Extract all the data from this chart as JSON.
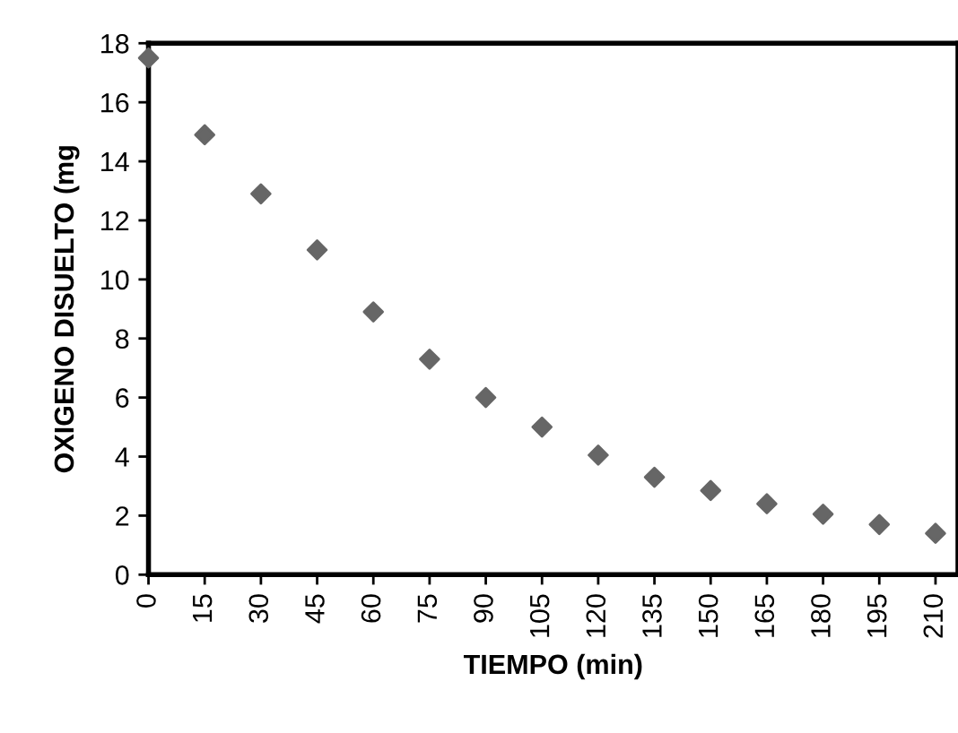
{
  "chart_data": {
    "type": "scatter",
    "xlabel": "TIEMPO (min)",
    "ylabel": "OXIGENO DISUELTO (mg",
    "x": [
      0,
      15,
      30,
      45,
      60,
      75,
      90,
      105,
      120,
      135,
      150,
      165,
      180,
      195,
      210
    ],
    "series": [
      {
        "color": "#666666",
        "values": [
          17.5,
          14.9,
          12.9,
          11.0,
          8.9,
          7.3,
          6.0,
          5.0,
          4.05,
          3.3,
          2.85,
          2.4,
          2.05,
          1.7,
          1.4
        ]
      }
    ],
    "marker": "diamond",
    "xlim": [
      0,
      216
    ],
    "xticks": [
      0,
      15,
      30,
      45,
      60,
      75,
      90,
      105,
      120,
      135,
      150,
      165,
      180,
      195,
      210
    ],
    "ylim": [
      0,
      18
    ],
    "yticks": [
      0,
      2,
      4,
      6,
      8,
      10,
      12,
      14,
      16,
      18
    ],
    "grid": false
  }
}
